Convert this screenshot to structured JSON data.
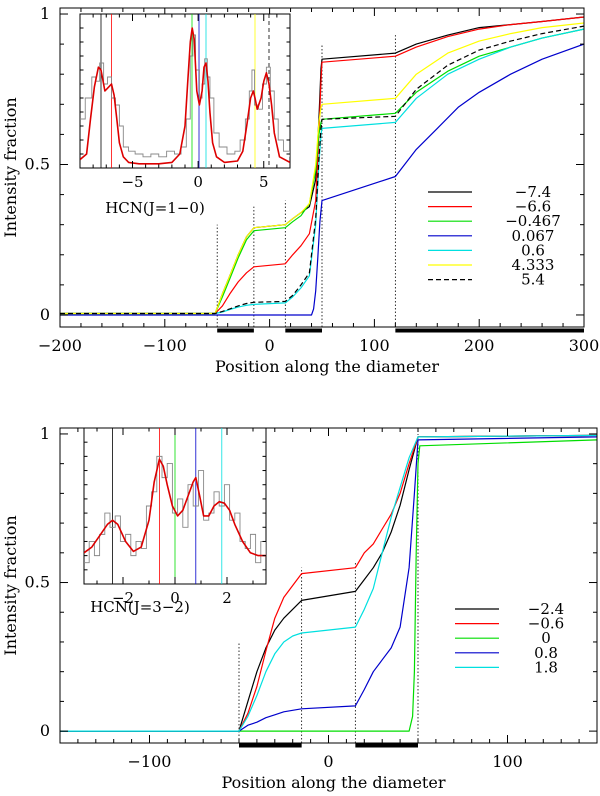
{
  "chart_data": [
    {
      "type": "line",
      "panel": "top",
      "xlabel": "Position along the diameter",
      "ylabel": "Intensity fraction",
      "xlim": [
        -200,
        300
      ],
      "ylim": [
        -0.04,
        1.02
      ],
      "xticks": [
        -200,
        -100,
        0,
        100,
        200,
        300
      ],
      "xtick_labels": [
        "−200",
        "−100",
        "0",
        "100",
        "200",
        "300"
      ],
      "yticks": [
        0,
        0.5,
        1
      ],
      "ytick_labels": [
        "0",
        "0.5",
        "1"
      ],
      "vlines": [
        -50,
        -15,
        15,
        50,
        120
      ],
      "bars": [
        [
          -50,
          -15
        ],
        [
          15,
          50
        ],
        [
          120,
          300
        ]
      ],
      "legend_position": "center-right",
      "series": [
        {
          "name": "−7.4",
          "color": "#000000",
          "dash": false,
          "x": [
            -200,
            -52,
            -45,
            -38,
            -30,
            -22,
            -15,
            15,
            22,
            30,
            38,
            44,
            47,
            49,
            50,
            120,
            140,
            170,
            200,
            230,
            260,
            300
          ],
          "y": [
            0.005,
            0.005,
            0.07,
            0.13,
            0.2,
            0.26,
            0.29,
            0.3,
            0.32,
            0.34,
            0.36,
            0.45,
            0.65,
            0.82,
            0.85,
            0.87,
            0.9,
            0.93,
            0.955,
            0.965,
            0.975,
            0.99
          ]
        },
        {
          "name": "−6.6",
          "color": "#ff0000",
          "dash": false,
          "x": [
            -200,
            -52,
            -45,
            -38,
            -30,
            -22,
            -15,
            15,
            22,
            30,
            38,
            44,
            47,
            49,
            50,
            120,
            140,
            170,
            200,
            230,
            260,
            300
          ],
          "y": [
            0.005,
            0.005,
            0.03,
            0.07,
            0.11,
            0.14,
            0.16,
            0.17,
            0.2,
            0.23,
            0.27,
            0.38,
            0.6,
            0.78,
            0.84,
            0.86,
            0.89,
            0.925,
            0.95,
            0.965,
            0.975,
            0.99
          ]
        },
        {
          "name": "−0.467",
          "color": "#00dd00",
          "dash": false,
          "x": [
            -200,
            -52,
            -45,
            -38,
            -30,
            -22,
            -15,
            15,
            22,
            30,
            38,
            44,
            47,
            49,
            50,
            120,
            140,
            170,
            200,
            230,
            260,
            300
          ],
          "y": [
            0.005,
            0.005,
            0.06,
            0.12,
            0.19,
            0.25,
            0.28,
            0.29,
            0.31,
            0.33,
            0.37,
            0.48,
            0.6,
            0.64,
            0.65,
            0.67,
            0.74,
            0.81,
            0.86,
            0.89,
            0.92,
            0.95
          ]
        },
        {
          "name": "0.067",
          "color": "#0000cc",
          "dash": false,
          "x": [
            -200,
            40,
            42,
            44,
            46,
            48,
            50,
            120,
            140,
            160,
            180,
            200,
            230,
            260,
            300
          ],
          "y": [
            0.0,
            0.0,
            0.02,
            0.08,
            0.19,
            0.31,
            0.38,
            0.46,
            0.55,
            0.62,
            0.69,
            0.74,
            0.8,
            0.85,
            0.9
          ]
        },
        {
          "name": "0.6",
          "color": "#00e0e0",
          "dash": false,
          "x": [
            -200,
            -52,
            -45,
            -38,
            -30,
            -22,
            -15,
            15,
            22,
            30,
            38,
            44,
            47,
            49,
            50,
            120,
            140,
            170,
            200,
            230,
            260,
            300
          ],
          "y": [
            0.005,
            0.005,
            0.01,
            0.018,
            0.026,
            0.032,
            0.035,
            0.04,
            0.06,
            0.09,
            0.13,
            0.3,
            0.5,
            0.6,
            0.62,
            0.64,
            0.72,
            0.8,
            0.85,
            0.89,
            0.92,
            0.95
          ]
        },
        {
          "name": "4.333",
          "color": "#ffff00",
          "dash": false,
          "x": [
            -200,
            -52,
            -45,
            -38,
            -30,
            -22,
            -15,
            15,
            22,
            30,
            38,
            44,
            47,
            49,
            50,
            120,
            140,
            170,
            200,
            230,
            260,
            300
          ],
          "y": [
            0.005,
            0.005,
            0.07,
            0.13,
            0.2,
            0.26,
            0.29,
            0.3,
            0.32,
            0.34,
            0.37,
            0.5,
            0.64,
            0.69,
            0.7,
            0.72,
            0.8,
            0.87,
            0.91,
            0.935,
            0.955,
            0.97
          ]
        },
        {
          "name": "5.4",
          "color": "#000000",
          "dash": true,
          "x": [
            -200,
            -52,
            -45,
            -38,
            -30,
            -22,
            -15,
            15,
            22,
            30,
            38,
            44,
            47,
            49,
            50,
            120,
            140,
            170,
            200,
            230,
            260,
            300
          ],
          "y": [
            0.005,
            0.005,
            0.012,
            0.02,
            0.03,
            0.038,
            0.042,
            0.045,
            0.065,
            0.1,
            0.14,
            0.32,
            0.52,
            0.62,
            0.65,
            0.66,
            0.75,
            0.83,
            0.88,
            0.91,
            0.935,
            0.96
          ]
        }
      ],
      "inset": {
        "label": "HCN(J=1−0)",
        "xlim": [
          -9,
          7
        ],
        "ylim": [
          0,
          1.1
        ],
        "xticks": [
          -5,
          0,
          5
        ],
        "xtick_labels": [
          "−5",
          "0",
          "5"
        ],
        "model_color": "#dd0000",
        "observed_color": "#888888",
        "model_x": [
          -9,
          -8.5,
          -8.2,
          -7.9,
          -7.6,
          -7.4,
          -7.1,
          -6.8,
          -6.6,
          -6.4,
          -6.2,
          -6.0,
          -5.7,
          -5.3,
          -4.5,
          -3,
          -2,
          -1.4,
          -1.0,
          -0.8,
          -0.6,
          -0.45,
          -0.3,
          -0.1,
          0.1,
          0.3,
          0.45,
          0.6,
          0.75,
          0.9,
          1.1,
          1.4,
          2,
          3,
          3.4,
          3.7,
          4.0,
          4.2,
          4.33,
          4.5,
          4.8,
          5.0,
          5.2,
          5.4,
          5.6,
          5.8,
          6.2,
          7
        ],
        "model_y": [
          0.06,
          0.1,
          0.35,
          0.58,
          0.72,
          0.7,
          0.55,
          0.58,
          0.6,
          0.52,
          0.35,
          0.18,
          0.08,
          0.04,
          0.03,
          0.03,
          0.04,
          0.1,
          0.3,
          0.6,
          0.9,
          1.0,
          0.92,
          0.55,
          0.45,
          0.55,
          0.72,
          0.75,
          0.62,
          0.4,
          0.18,
          0.08,
          0.04,
          0.05,
          0.12,
          0.3,
          0.5,
          0.55,
          0.5,
          0.42,
          0.5,
          0.62,
          0.68,
          0.6,
          0.45,
          0.25,
          0.08,
          0.04
        ],
        "observed_x": [
          -9,
          -8.6,
          -8.3,
          -8.1,
          -7.8,
          -7.5,
          -7.2,
          -6.9,
          -6.6,
          -6.3,
          -6.0,
          -5.7,
          -5.3,
          -4.8,
          -4.2,
          -3.6,
          -3,
          -2.4,
          -1.8,
          -1.3,
          -0.9,
          -0.6,
          -0.4,
          -0.2,
          0.1,
          0.3,
          0.5,
          0.7,
          0.9,
          1.2,
          1.6,
          2.2,
          2.8,
          3.2,
          3.6,
          3.9,
          4.1,
          4.3,
          4.6,
          4.9,
          5.2,
          5.5,
          5.8,
          6.1,
          6.5,
          7
        ],
        "observed_y": [
          0.35,
          0.5,
          0.5,
          0.65,
          0.62,
          0.75,
          0.6,
          0.65,
          0.5,
          0.45,
          0.3,
          0.15,
          0.12,
          0.1,
          0.08,
          0.1,
          0.08,
          0.12,
          0.1,
          0.15,
          0.35,
          0.8,
          0.95,
          0.7,
          0.5,
          0.6,
          0.78,
          0.65,
          0.5,
          0.25,
          0.15,
          0.1,
          0.12,
          0.2,
          0.35,
          0.55,
          0.7,
          0.45,
          0.42,
          0.6,
          0.72,
          0.55,
          0.35,
          0.2,
          0.12,
          0.08
        ],
        "markers": [
          {
            "x": -7.4,
            "color": "#000000"
          },
          {
            "x": -6.6,
            "color": "#ff0000"
          },
          {
            "x": -0.467,
            "color": "#00dd00"
          },
          {
            "x": 0.067,
            "color": "#0000cc"
          },
          {
            "x": 0.6,
            "color": "#00e0e0"
          },
          {
            "x": 4.333,
            "color": "#ffff00"
          },
          {
            "x": 5.4,
            "color": "#000000",
            "dash": true
          }
        ]
      }
    },
    {
      "type": "line",
      "panel": "bottom",
      "xlabel": "Position along the diameter",
      "ylabel": "Intensity fraction",
      "xlim": [
        -150,
        150
      ],
      "ylim": [
        -0.04,
        1.02
      ],
      "xticks": [
        -100,
        0,
        100
      ],
      "xtick_labels": [
        "−100",
        "0",
        "100"
      ],
      "yticks": [
        0,
        0.5,
        1
      ],
      "ytick_labels": [
        "0",
        "0.5",
        "1"
      ],
      "vlines": [
        -50,
        -15,
        15,
        50
      ],
      "bars": [
        [
          -50,
          -15
        ],
        [
          15,
          50
        ]
      ],
      "legend_position": "center-right",
      "series": [
        {
          "name": "−2.4",
          "color": "#000000",
          "dash": false,
          "x": [
            -150,
            -50,
            -45,
            -40,
            -35,
            -30,
            -25,
            -20,
            -15,
            15,
            20,
            25,
            30,
            35,
            40,
            45,
            50,
            150
          ],
          "y": [
            0,
            0,
            0.1,
            0.2,
            0.28,
            0.34,
            0.38,
            0.41,
            0.44,
            0.47,
            0.51,
            0.55,
            0.6,
            0.67,
            0.76,
            0.88,
            0.99,
            0.995
          ]
        },
        {
          "name": "−0.6",
          "color": "#ff0000",
          "dash": false,
          "x": [
            -150,
            -50,
            -45,
            -40,
            -35,
            -30,
            -25,
            -20,
            -15,
            15,
            20,
            25,
            30,
            35,
            40,
            45,
            50,
            150
          ],
          "y": [
            0,
            0,
            0.06,
            0.15,
            0.27,
            0.38,
            0.45,
            0.49,
            0.53,
            0.55,
            0.6,
            0.63,
            0.68,
            0.73,
            0.8,
            0.9,
            0.99,
            0.995
          ]
        },
        {
          "name": "0",
          "color": "#00dd00",
          "dash": false,
          "x": [
            -150,
            45,
            47,
            48,
            49,
            50,
            51,
            150
          ],
          "y": [
            0,
            0,
            0.05,
            0.2,
            0.6,
            0.9,
            0.96,
            0.98
          ]
        },
        {
          "name": "0.8",
          "color": "#0000cc",
          "dash": false,
          "x": [
            -150,
            -50,
            -45,
            -40,
            -35,
            -30,
            -25,
            -20,
            -15,
            15,
            20,
            25,
            30,
            35,
            40,
            45,
            48,
            50,
            150
          ],
          "y": [
            0,
            0,
            0.02,
            0.03,
            0.045,
            0.055,
            0.065,
            0.07,
            0.075,
            0.085,
            0.14,
            0.2,
            0.24,
            0.28,
            0.35,
            0.55,
            0.8,
            0.98,
            0.99
          ]
        },
        {
          "name": "1.8",
          "color": "#00e0e0",
          "dash": false,
          "x": [
            -150,
            -50,
            -45,
            -40,
            -35,
            -30,
            -25,
            -20,
            -15,
            15,
            20,
            25,
            30,
            35,
            40,
            45,
            50,
            150
          ],
          "y": [
            0,
            0,
            0.05,
            0.12,
            0.2,
            0.26,
            0.3,
            0.32,
            0.33,
            0.35,
            0.41,
            0.48,
            0.6,
            0.72,
            0.82,
            0.92,
            0.99,
            0.995
          ]
        }
      ],
      "inset": {
        "label": "HCN(J=3−2)",
        "xlim": [
          -3.5,
          3.5
        ],
        "ylim": [
          0,
          1.1
        ],
        "xticks": [
          -2,
          0,
          2
        ],
        "xtick_labels": [
          "−2",
          "0",
          "2"
        ],
        "model_color": "#dd0000",
        "observed_color": "#888888",
        "model_x": [
          -3.5,
          -3.2,
          -2.9,
          -2.6,
          -2.4,
          -2.2,
          -1.9,
          -1.6,
          -1.3,
          -1.0,
          -0.8,
          -0.6,
          -0.45,
          -0.3,
          -0.1,
          0.1,
          0.3,
          0.5,
          0.7,
          0.8,
          0.95,
          1.1,
          1.3,
          1.5,
          1.7,
          1.9,
          2.1,
          2.3,
          2.6,
          2.9,
          3.2,
          3.5
        ],
        "model_y": [
          0.22,
          0.26,
          0.34,
          0.42,
          0.45,
          0.42,
          0.3,
          0.23,
          0.26,
          0.45,
          0.72,
          0.88,
          0.83,
          0.7,
          0.55,
          0.48,
          0.52,
          0.62,
          0.72,
          0.75,
          0.62,
          0.48,
          0.48,
          0.55,
          0.58,
          0.57,
          0.52,
          0.42,
          0.3,
          0.22,
          0.2,
          0.2
        ],
        "observed_x": [
          -3.5,
          -3.3,
          -3.1,
          -2.9,
          -2.7,
          -2.5,
          -2.3,
          -2.1,
          -1.9,
          -1.7,
          -1.5,
          -1.3,
          -1.1,
          -0.9,
          -0.7,
          -0.5,
          -0.3,
          -0.1,
          0.1,
          0.3,
          0.5,
          0.7,
          0.9,
          1.1,
          1.3,
          1.5,
          1.7,
          1.9,
          2.1,
          2.3,
          2.5,
          2.7,
          2.9,
          3.1,
          3.3,
          3.5
        ],
        "observed_y": [
          0.15,
          0.3,
          0.2,
          0.35,
          0.5,
          0.4,
          0.48,
          0.3,
          0.35,
          0.2,
          0.3,
          0.25,
          0.55,
          0.65,
          0.9,
          0.75,
          0.85,
          0.5,
          0.6,
          0.4,
          0.7,
          0.55,
          0.8,
          0.45,
          0.5,
          0.65,
          0.55,
          0.7,
          0.45,
          0.5,
          0.3,
          0.25,
          0.35,
          0.15,
          0.3,
          0.2
        ],
        "markers": [
          {
            "x": -2.4,
            "color": "#000000"
          },
          {
            "x": -0.6,
            "color": "#ff0000"
          },
          {
            "x": 0,
            "color": "#00dd00"
          },
          {
            "x": 0.8,
            "color": "#0000cc"
          },
          {
            "x": 1.8,
            "color": "#00e0e0"
          }
        ]
      }
    }
  ]
}
